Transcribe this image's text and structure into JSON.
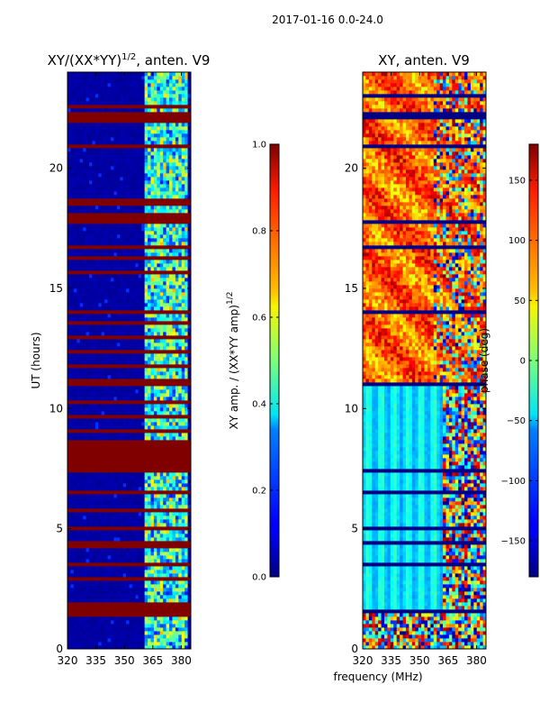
{
  "chart_data": {
    "suptitle": "2017-01-16 0.0-24.0",
    "xlabel_shared": "frequency (MHz)",
    "panels": [
      {
        "id": "amp",
        "type": "heatmap",
        "title": "XY/(XX*YY)^{1/2}, anten. V9",
        "title_main": "XY/(XX*YY)",
        "title_sup": "1/2",
        "title_tail": ", anten. V9",
        "ylabel": "UT (hours)",
        "xlim": [
          320,
          385
        ],
        "ylim": [
          0,
          24
        ],
        "xticks": [
          "320",
          "335",
          "350",
          "365",
          "380"
        ],
        "xtick_values": [
          320,
          335,
          350,
          365,
          380
        ],
        "yticks": [
          "0",
          "5",
          "10",
          "15",
          "20"
        ],
        "ytick_values": [
          0,
          5,
          10,
          15,
          20
        ],
        "colormap": "jet",
        "colorbar": {
          "label": "XY amp. / (XX*YY amp)^{1/2}",
          "label_main": "XY amp. / (XX*YY amp)",
          "label_sup": "1/2",
          "range": [
            0.0,
            1.0
          ],
          "ticks": [
            "0.0",
            "0.2",
            "0.4",
            "0.6",
            "0.8",
            "1.0"
          ],
          "tick_values": [
            0.0,
            0.2,
            0.4,
            0.6,
            0.8,
            1.0
          ]
        },
        "background_value": 0.02,
        "active_band_mhz": [
          361,
          383
        ],
        "saturated_hours": [
          [
            0.3,
            0.35
          ],
          [
            1.35,
            2.0
          ],
          [
            2.2,
            2.3
          ],
          [
            2.85,
            2.95
          ],
          [
            3.5,
            3.6
          ],
          [
            4.2,
            4.5
          ],
          [
            4.95,
            5.15
          ],
          [
            5.75,
            5.85
          ],
          [
            6.45,
            6.55
          ],
          [
            7.4,
            8.7
          ],
          [
            9.0,
            9.1
          ],
          [
            9.6,
            9.7
          ],
          [
            10.2,
            10.3
          ],
          [
            11.0,
            11.2
          ],
          [
            11.7,
            11.8
          ],
          [
            12.3,
            12.4
          ],
          [
            12.9,
            13.0
          ],
          [
            13.5,
            13.6
          ],
          [
            14.0,
            14.1
          ],
          [
            14.5,
            14.6
          ],
          [
            15.1,
            15.2
          ],
          [
            15.6,
            15.75
          ],
          [
            16.2,
            16.3
          ],
          [
            16.7,
            16.8
          ],
          [
            17.2,
            17.3
          ],
          [
            17.7,
            18.1
          ],
          [
            18.5,
            18.7
          ],
          [
            20.9,
            21.0
          ],
          [
            21.9,
            22.4
          ],
          [
            22.5,
            22.6
          ]
        ]
      },
      {
        "id": "phase",
        "type": "heatmap",
        "title": "XY, anten. V9",
        "ylabel": "",
        "xlim": [
          320,
          385
        ],
        "ylim": [
          0,
          24
        ],
        "xticks": [
          "320",
          "335",
          "350",
          "365",
          "380"
        ],
        "xtick_values": [
          320,
          335,
          350,
          365,
          380
        ],
        "yticks": [
          "0",
          "5",
          "10",
          "15",
          "20"
        ],
        "ytick_values": [
          0,
          5,
          10,
          15,
          20
        ],
        "colormap": "jet",
        "colorbar": {
          "label": "phase (deg)",
          "range": [
            -180,
            180
          ],
          "ticks": [
            "−150",
            "−100",
            "−50",
            "0",
            "50",
            "100",
            "150"
          ],
          "tick_values": [
            -150,
            -100,
            -50,
            0,
            50,
            100,
            150
          ]
        },
        "phase_regions": [
          {
            "hours": [
              0,
              1.6
            ],
            "note": "noisy mixed"
          },
          {
            "hours": [
              1.6,
              11.0
            ],
            "note": "cyan-blue banded, noisy above 362 MHz"
          },
          {
            "hours": [
              11.0,
              24.0
            ],
            "note": "red-orange mixed phases"
          }
        ],
        "gap_hours": [
          [
            1.5,
            1.6
          ],
          [
            1.95,
            2.0
          ],
          [
            2.2,
            2.25
          ],
          [
            2.85,
            2.9
          ],
          [
            3.5,
            3.55
          ],
          [
            4.2,
            4.25
          ],
          [
            4.4,
            4.45
          ],
          [
            5.0,
            5.05
          ],
          [
            5.8,
            5.85
          ],
          [
            6.5,
            6.55
          ],
          [
            7.4,
            7.45
          ],
          [
            7.8,
            7.85
          ],
          [
            8.1,
            8.15
          ],
          [
            8.5,
            8.55
          ],
          [
            9.0,
            9.05
          ],
          [
            9.6,
            9.65
          ],
          [
            10.2,
            10.25
          ],
          [
            11.0,
            11.1
          ],
          [
            12.3,
            12.35
          ],
          [
            13.0,
            13.05
          ],
          [
            14.0,
            14.05
          ],
          [
            15.1,
            15.15
          ],
          [
            15.7,
            15.75
          ],
          [
            16.7,
            16.75
          ],
          [
            17.7,
            17.8
          ],
          [
            18.6,
            18.65
          ],
          [
            20.9,
            21.0
          ],
          [
            22.0,
            22.3
          ],
          [
            23.0,
            23.05
          ]
        ]
      }
    ]
  }
}
